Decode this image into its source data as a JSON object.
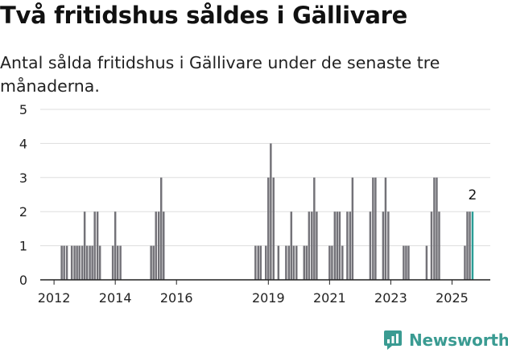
{
  "header": {
    "title": "Två fritidshus såldes i Gällivare",
    "subtitle": "Antal sålda fritidshus i Gällivare under de senaste tre månaderna."
  },
  "brand": {
    "name": "Newsworthy",
    "color": "#3a9b92",
    "icon": "newsworthy-logo-icon"
  },
  "colors": {
    "bar": "#737278",
    "highlight": "#2a9d96",
    "grid": "#dddddd",
    "axis": "#222222"
  },
  "chart_data": {
    "type": "bar",
    "title": "Två fritidshus såldes i Gällivare",
    "subtitle": "Antal sålda fritidshus i Gällivare under de senaste tre månaderna.",
    "xlabel": "",
    "ylabel": "",
    "ylim": [
      0,
      5
    ],
    "yticks": [
      0,
      1,
      2,
      3,
      4,
      5
    ],
    "xlim": [
      2011.55,
      2026.25
    ],
    "xticks": [
      {
        "value": 2012,
        "label": "2012"
      },
      {
        "value": 2014,
        "label": "2014"
      },
      {
        "value": 2016,
        "label": "2016"
      },
      {
        "value": 2019,
        "label": "2019"
      },
      {
        "value": 2021,
        "label": "2021"
      },
      {
        "value": 2023,
        "label": "2023"
      },
      {
        "value": 2025,
        "label": "2025"
      }
    ],
    "grid": true,
    "highlight": {
      "x": 2025.67,
      "value": 2,
      "label": "2"
    },
    "x": [
      2012.25,
      2012.33,
      2012.42,
      2012.58,
      2012.67,
      2012.75,
      2012.83,
      2012.92,
      2013.0,
      2013.08,
      2013.17,
      2013.25,
      2013.33,
      2013.42,
      2013.5,
      2013.92,
      2014.0,
      2014.08,
      2014.17,
      2015.17,
      2015.25,
      2015.33,
      2015.42,
      2015.5,
      2015.58,
      2018.58,
      2018.67,
      2018.75,
      2018.92,
      2019.0,
      2019.08,
      2019.17,
      2019.33,
      2019.58,
      2019.67,
      2019.75,
      2019.83,
      2019.92,
      2020.17,
      2020.25,
      2020.33,
      2020.42,
      2020.5,
      2020.58,
      2021.0,
      2021.08,
      2021.17,
      2021.25,
      2021.33,
      2021.42,
      2021.58,
      2021.67,
      2021.75,
      2022.33,
      2022.42,
      2022.5,
      2022.75,
      2022.83,
      2022.92,
      2023.42,
      2023.5,
      2023.58,
      2024.17,
      2024.33,
      2024.42,
      2024.5,
      2024.58,
      2025.42,
      2025.5,
      2025.58,
      2025.67
    ],
    "values": [
      1,
      1,
      1,
      1,
      1,
      1,
      1,
      1,
      2,
      1,
      1,
      1,
      2,
      2,
      1,
      1,
      2,
      1,
      1,
      1,
      1,
      2,
      2,
      3,
      2,
      1,
      1,
      1,
      1,
      3,
      4,
      3,
      1,
      1,
      1,
      2,
      1,
      1,
      1,
      1,
      2,
      2,
      3,
      2,
      1,
      1,
      2,
      2,
      2,
      1,
      2,
      2,
      3,
      2,
      3,
      3,
      2,
      3,
      2,
      1,
      1,
      1,
      1,
      2,
      3,
      3,
      2,
      1,
      2,
      2,
      2
    ],
    "series": [
      {
        "values": [
          1,
          1,
          1,
          1,
          1,
          1,
          1,
          1,
          2,
          1,
          1,
          1,
          2,
          2,
          1,
          1,
          2,
          1,
          1,
          1,
          1,
          2,
          2,
          3,
          2,
          1,
          1,
          1,
          1,
          3,
          4,
          3,
          1,
          1,
          1,
          2,
          1,
          1,
          1,
          1,
          2,
          2,
          3,
          2,
          1,
          1,
          2,
          2,
          2,
          1,
          2,
          2,
          3,
          2,
          3,
          3,
          2,
          3,
          2,
          1,
          1,
          1,
          1,
          2,
          3,
          3,
          2,
          1,
          2,
          2,
          2
        ]
      }
    ]
  }
}
